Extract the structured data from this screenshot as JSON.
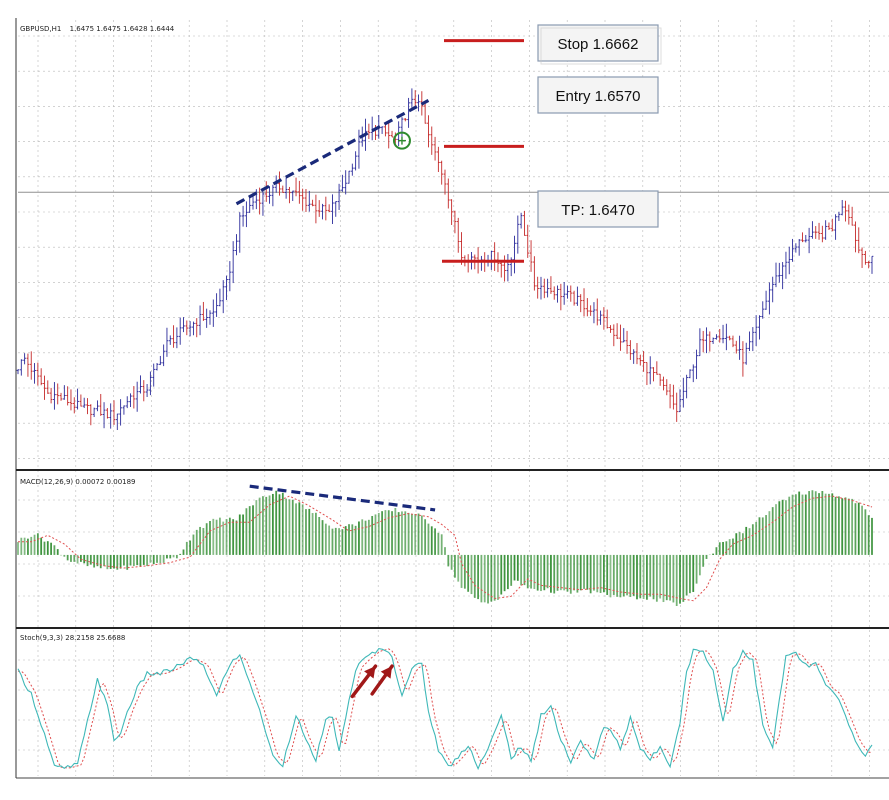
{
  "chart_data": [
    {
      "type": "candlestick",
      "panel": "price",
      "header": {
        "symbol": "GBPUSD,H1",
        "ohlc": "1.6475 1.6475 1.6428 1.6444"
      },
      "x_unit": "bar index (H1)",
      "ylim": [
        1.629,
        1.668
      ],
      "colors": {
        "up": "#2a2a9a",
        "down": "#c42828"
      },
      "price_path": [
        [
          0,
          1.6375
        ],
        [
          3,
          1.6385
        ],
        [
          6,
          1.6372
        ],
        [
          10,
          1.6355
        ],
        [
          15,
          1.635
        ],
        [
          20,
          1.6342
        ],
        [
          25,
          1.634
        ],
        [
          30,
          1.6335
        ],
        [
          35,
          1.6352
        ],
        [
          40,
          1.636
        ],
        [
          46,
          1.6398
        ],
        [
          51,
          1.641
        ],
        [
          56,
          1.642
        ],
        [
          60,
          1.6425
        ],
        [
          64,
          1.645
        ],
        [
          68,
          1.6505
        ],
        [
          72,
          1.6522
        ],
        [
          76,
          1.6528
        ],
        [
          80,
          1.6535
        ],
        [
          85,
          1.6528
        ],
        [
          90,
          1.6518
        ],
        [
          95,
          1.6512
        ],
        [
          100,
          1.654
        ],
        [
          105,
          1.6578
        ],
        [
          110,
          1.6585
        ],
        [
          115,
          1.6575
        ],
        [
          119,
          1.6605
        ],
        [
          122,
          1.6612
        ],
        [
          125,
          1.6578
        ],
        [
          130,
          1.654
        ],
        [
          135,
          1.6475
        ],
        [
          140,
          1.6472
        ],
        [
          145,
          1.6475
        ],
        [
          148,
          1.6462
        ],
        [
          150,
          1.6475
        ],
        [
          153,
          1.651
        ],
        [
          157,
          1.645
        ],
        [
          162,
          1.6445
        ],
        [
          167,
          1.644
        ],
        [
          172,
          1.6432
        ],
        [
          177,
          1.642
        ],
        [
          183,
          1.6402
        ],
        [
          188,
          1.6385
        ],
        [
          193,
          1.6372
        ],
        [
          197,
          1.6355
        ],
        [
          200,
          1.634
        ],
        [
          203,
          1.6365
        ],
        [
          207,
          1.6398
        ],
        [
          212,
          1.6408
        ],
        [
          216,
          1.6402
        ],
        [
          220,
          1.6385
        ],
        [
          224,
          1.641
        ],
        [
          228,
          1.6445
        ],
        [
          233,
          1.647
        ],
        [
          238,
          1.649
        ],
        [
          243,
          1.6492
        ],
        [
          247,
          1.65
        ],
        [
          250,
          1.652
        ],
        [
          252,
          1.6512
        ],
        [
          255,
          1.648
        ],
        [
          258,
          1.647
        ]
      ],
      "horizontal_line": 1.653,
      "trend_line": {
        "from": [
          66,
          1.652
        ],
        "to": [
          124,
          1.661
        ]
      },
      "levels": [
        {
          "label": "Stop 1.6662",
          "price": 1.6662,
          "color": "#c81e1e"
        },
        {
          "label": "Entry 1.6570",
          "price": 1.657,
          "color": "#c81e1e"
        },
        {
          "label": "TP: 1.6470",
          "price": 1.647,
          "color": "#c81e1e"
        }
      ],
      "markers": [
        {
          "type": "circle",
          "x": 116,
          "price": 1.6575,
          "color": "#2e8b2e"
        }
      ]
    },
    {
      "type": "histogram",
      "panel": "indicator",
      "name": "MACD(12,26,9) 0.00072 0.00189",
      "ylim": [
        -0.006,
        0.007
      ],
      "histogram_color": "#2e8b2e",
      "signal_color": "#e05050",
      "macd_path": [
        [
          0,
          0.0012
        ],
        [
          5,
          0.0018
        ],
        [
          10,
          0.001
        ],
        [
          15,
          -0.0004
        ],
        [
          22,
          -0.001
        ],
        [
          28,
          -0.0012
        ],
        [
          35,
          -0.001
        ],
        [
          42,
          -0.0007
        ],
        [
          48,
          -0.0002
        ],
        [
          54,
          0.0022
        ],
        [
          60,
          0.003
        ],
        [
          66,
          0.003
        ],
        [
          72,
          0.0046
        ],
        [
          78,
          0.0054
        ],
        [
          84,
          0.0045
        ],
        [
          90,
          0.0034
        ],
        [
          96,
          0.0022
        ],
        [
          102,
          0.0026
        ],
        [
          108,
          0.0034
        ],
        [
          114,
          0.0038
        ],
        [
          120,
          0.0035
        ],
        [
          124,
          0.0028
        ],
        [
          128,
          0.0018
        ],
        [
          130,
          -0.0008
        ],
        [
          134,
          -0.0028
        ],
        [
          140,
          -0.004
        ],
        [
          145,
          -0.0038
        ],
        [
          150,
          -0.0022
        ],
        [
          154,
          -0.0028
        ],
        [
          160,
          -0.003
        ],
        [
          166,
          -0.0032
        ],
        [
          172,
          -0.003
        ],
        [
          178,
          -0.0034
        ],
        [
          184,
          -0.0036
        ],
        [
          190,
          -0.0036
        ],
        [
          196,
          -0.004
        ],
        [
          200,
          -0.0042
        ],
        [
          204,
          -0.003
        ],
        [
          208,
          -0.0004
        ],
        [
          212,
          0.001
        ],
        [
          218,
          0.0018
        ],
        [
          224,
          0.003
        ],
        [
          230,
          0.0044
        ],
        [
          236,
          0.0052
        ],
        [
          242,
          0.0054
        ],
        [
          248,
          0.005
        ],
        [
          254,
          0.0044
        ],
        [
          258,
          0.003
        ]
      ],
      "trend_line": {
        "from": [
          70,
          0.0058
        ],
        "to": [
          126,
          0.0038
        ]
      }
    },
    {
      "type": "line",
      "panel": "indicator",
      "name": "Stoch(9,3,3) 28.2158 25.6688",
      "ylim": [
        0,
        100
      ],
      "series_colors": [
        "#3fb8b8",
        "#e05050"
      ],
      "main_path": [
        [
          0,
          80
        ],
        [
          4,
          62
        ],
        [
          8,
          30
        ],
        [
          11,
          4
        ],
        [
          14,
          3
        ],
        [
          18,
          6
        ],
        [
          21,
          40
        ],
        [
          24,
          74
        ],
        [
          27,
          52
        ],
        [
          29,
          26
        ],
        [
          31,
          30
        ],
        [
          33,
          48
        ],
        [
          36,
          66
        ],
        [
          39,
          78
        ],
        [
          43,
          78
        ],
        [
          47,
          82
        ],
        [
          52,
          90
        ],
        [
          56,
          85
        ],
        [
          60,
          60
        ],
        [
          64,
          86
        ],
        [
          67,
          92
        ],
        [
          70,
          72
        ],
        [
          74,
          40
        ],
        [
          77,
          12
        ],
        [
          80,
          6
        ],
        [
          84,
          46
        ],
        [
          87,
          24
        ],
        [
          90,
          10
        ],
        [
          93,
          40
        ],
        [
          95,
          44
        ],
        [
          97,
          16
        ],
        [
          100,
          56
        ],
        [
          102,
          82
        ],
        [
          105,
          90
        ],
        [
          108,
          96
        ],
        [
          111,
          98
        ],
        [
          113,
          90
        ],
        [
          116,
          62
        ],
        [
          119,
          82
        ],
        [
          122,
          86
        ],
        [
          124,
          48
        ],
        [
          127,
          18
        ],
        [
          130,
          4
        ],
        [
          133,
          12
        ],
        [
          136,
          22
        ],
        [
          139,
          4
        ],
        [
          142,
          18
        ],
        [
          146,
          44
        ],
        [
          149,
          12
        ],
        [
          152,
          20
        ],
        [
          155,
          8
        ],
        [
          158,
          46
        ],
        [
          161,
          52
        ],
        [
          164,
          26
        ],
        [
          167,
          8
        ],
        [
          170,
          24
        ],
        [
          174,
          10
        ],
        [
          177,
          36
        ],
        [
          180,
          30
        ],
        [
          182,
          18
        ],
        [
          185,
          44
        ],
        [
          188,
          18
        ],
        [
          191,
          10
        ],
        [
          194,
          20
        ],
        [
          197,
          6
        ],
        [
          200,
          40
        ],
        [
          202,
          80
        ],
        [
          204,
          96
        ],
        [
          207,
          96
        ],
        [
          210,
          80
        ],
        [
          213,
          40
        ],
        [
          216,
          82
        ],
        [
          219,
          96
        ],
        [
          222,
          88
        ],
        [
          225,
          36
        ],
        [
          228,
          20
        ],
        [
          232,
          92
        ],
        [
          235,
          94
        ],
        [
          238,
          84
        ],
        [
          241,
          86
        ],
        [
          244,
          68
        ],
        [
          247,
          62
        ],
        [
          250,
          44
        ],
        [
          253,
          24
        ],
        [
          256,
          14
        ],
        [
          258,
          20
        ]
      ],
      "arrows": [
        {
          "from": [
            101,
            60
          ],
          "to": [
            108,
            84
          ],
          "color": "#a01818"
        },
        {
          "from": [
            107,
            62
          ],
          "to": [
            113,
            84
          ],
          "color": "#a01818"
        }
      ]
    }
  ]
}
